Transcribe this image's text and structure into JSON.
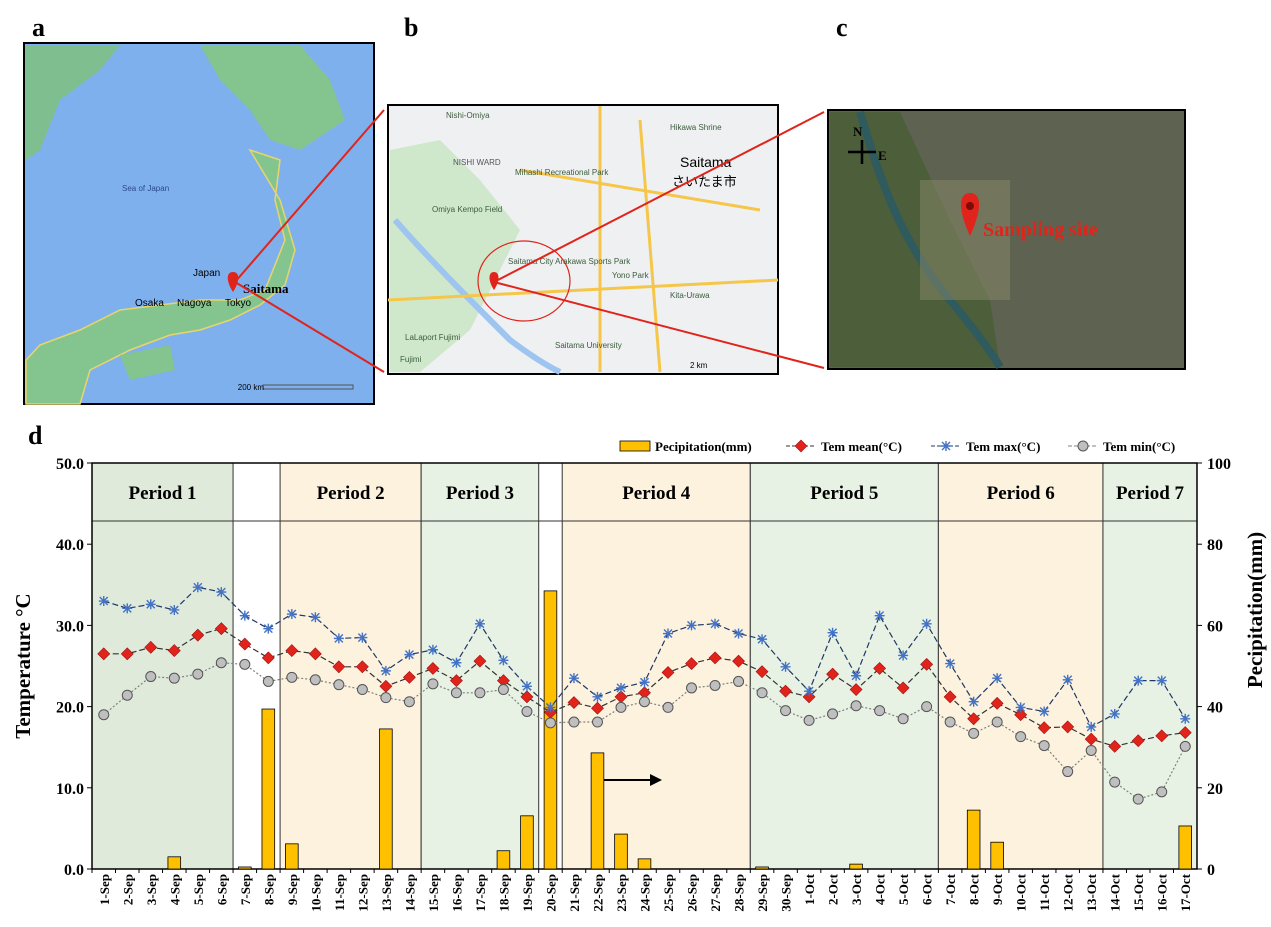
{
  "figure": {
    "panel_labels": [
      "a",
      "b",
      "c",
      "d"
    ],
    "map_a": {
      "sea": "Sea of Japan",
      "country": "Japan",
      "site": "Saitama",
      "cities": [
        "Osaka",
        "Nagoya",
        "Tokyo"
      ],
      "scale": "200 km"
    },
    "map_b": {
      "labels": [
        "Nishi-Omiya",
        "NISHI WARD",
        "Mihashi Recreational Park",
        "Saitama",
        "さいたま市",
        "Omiya Kempo Field",
        "Saitama City Arakawa Sports Park",
        "Yono Park",
        "Hikawa Shrine",
        "Kita-Urawa",
        "LaLaport Fujimi",
        "Saitama University",
        "Fujimi"
      ],
      "scale": "2 km"
    },
    "map_c": {
      "north": "N",
      "east": "E",
      "site": "Sampling site"
    }
  },
  "chart_data": {
    "type": "bar-line",
    "categories": [
      "1-Sep",
      "2-Sep",
      "3-Sep",
      "4-Sep",
      "5-Sep",
      "6-Sep",
      "7-Sep",
      "8-Sep",
      "9-Sep",
      "10-Sep",
      "11-Sep",
      "12-Sep",
      "13-Sep",
      "14-Sep",
      "15-Sep",
      "16-Sep",
      "17-Sep",
      "18-Sep",
      "19-Sep",
      "20-Sep",
      "21-Sep",
      "22-Sep",
      "23-Sep",
      "24-Sep",
      "25-Sep",
      "26-Sep",
      "27-Sep",
      "28-Sep",
      "29-Sep",
      "30-Sep",
      "1-Oct",
      "2-Oct",
      "3-Oct",
      "4-Oct",
      "5-Oct",
      "6-Oct",
      "7-Oct",
      "8-Oct",
      "9-Oct",
      "10-Oct",
      "11-Oct",
      "12-Oct",
      "13-Oct",
      "14-Oct",
      "15-Oct",
      "16-Oct",
      "17-Oct"
    ],
    "y_label": "Temperature °C",
    "y2_label": "Pecipitation(mm)",
    "ylim": [
      0,
      50
    ],
    "yticks": [
      {
        "value": 0,
        "label": "0.0"
      },
      {
        "value": 10,
        "label": "10.0"
      },
      {
        "value": 20,
        "label": "20.0"
      },
      {
        "value": 30,
        "label": "30.0"
      },
      {
        "value": 40,
        "label": "40.0"
      },
      {
        "value": 50,
        "label": "50.0"
      }
    ],
    "y2lim": [
      0,
      100
    ],
    "y2ticks": [
      0,
      20,
      40,
      60,
      80,
      100
    ],
    "periods": [
      {
        "label": "Period 1",
        "start": "1-Sep",
        "end": "6-Sep",
        "color": "#dfeadb"
      },
      {
        "label": "Period 2",
        "start": "9-Sep",
        "end": "14-Sep",
        "color": "#fdf2de"
      },
      {
        "label": "Period 3",
        "start": "15-Sep",
        "end": "19-Sep",
        "color": "#e8f2e4"
      },
      {
        "label": "Period 4",
        "start": "21-Sep",
        "end": "28-Sep",
        "color": "#fdf2de"
      },
      {
        "label": "Period 5",
        "start": "29-Sep",
        "end": "6-Oct",
        "color": "#e8f2e4"
      },
      {
        "label": "Period 6",
        "start": "7-Oct",
        "end": "13-Oct",
        "color": "#fdf2de"
      },
      {
        "label": "Period 7",
        "start": "14-Oct",
        "end": "17-Oct",
        "color": "#e8f2e4"
      }
    ],
    "series": [
      {
        "name": "Pecipitation(mm)",
        "kind": "bar",
        "axis": "y2",
        "color": "#ffc000",
        "values": [
          0,
          0,
          0,
          3,
          0,
          0,
          0.5,
          39.4,
          6.2,
          0,
          0,
          0,
          34.5,
          0,
          0,
          0,
          0,
          4.5,
          13.1,
          68.5,
          0,
          28.6,
          8.6,
          2.5,
          0,
          0,
          0,
          0,
          0.5,
          0,
          0,
          0,
          1.2,
          0,
          0,
          0,
          0,
          14.5,
          6.6,
          0,
          0,
          0,
          0,
          0,
          0,
          0,
          10.6
        ]
      },
      {
        "name": "Tem mean(°C)",
        "kind": "line",
        "marker": "diamond",
        "color": "#e0241b",
        "line_color": "#333333",
        "values": [
          26.5,
          26.5,
          27.3,
          26.9,
          28.8,
          29.6,
          27.7,
          26.0,
          26.9,
          26.5,
          24.9,
          24.9,
          22.5,
          23.6,
          24.7,
          23.2,
          25.6,
          23.2,
          21.2,
          19.3,
          20.5,
          19.8,
          21.2,
          21.7,
          24.2,
          25.3,
          26.0,
          25.6,
          24.3,
          21.9,
          21.2,
          24.0,
          22.1,
          24.7,
          22.3,
          25.2,
          21.2,
          18.5,
          20.4,
          19.0,
          17.4,
          17.5,
          16.0,
          15.1,
          15.8,
          16.4,
          16.8
        ]
      },
      {
        "name": "Tem max(°C)",
        "kind": "line",
        "marker": "star",
        "color": "#4472c4",
        "line_color": "#1f3864",
        "values": [
          33.0,
          32.1,
          32.6,
          31.9,
          34.7,
          34.1,
          31.2,
          29.6,
          31.4,
          31.0,
          28.4,
          28.5,
          24.4,
          26.4,
          27.0,
          25.4,
          30.2,
          25.7,
          22.5,
          19.9,
          23.5,
          21.2,
          22.3,
          23.0,
          29.0,
          30.0,
          30.2,
          29.0,
          28.3,
          24.9,
          21.9,
          29.1,
          23.8,
          31.2,
          26.3,
          30.2,
          25.3,
          20.6,
          23.5,
          19.9,
          19.4,
          23.3,
          17.5,
          19.1,
          23.2,
          23.2,
          18.5
        ]
      },
      {
        "name": "Tem min(°C)",
        "kind": "line",
        "marker": "circle",
        "color": "#bfbfbf",
        "line_color": "#808080",
        "values": [
          19.0,
          21.4,
          23.7,
          23.5,
          24.0,
          25.4,
          25.2,
          23.1,
          23.6,
          23.3,
          22.7,
          22.1,
          21.1,
          20.6,
          22.8,
          21.7,
          21.7,
          22.1,
          19.4,
          18.0,
          18.1,
          18.1,
          19.9,
          20.6,
          19.9,
          22.3,
          22.6,
          23.1,
          21.7,
          19.5,
          18.3,
          19.1,
          20.1,
          19.5,
          18.5,
          20.0,
          18.1,
          16.7,
          18.1,
          16.3,
          15.2,
          12.0,
          14.6,
          10.7,
          8.6,
          9.5,
          15.1
        ]
      }
    ]
  }
}
